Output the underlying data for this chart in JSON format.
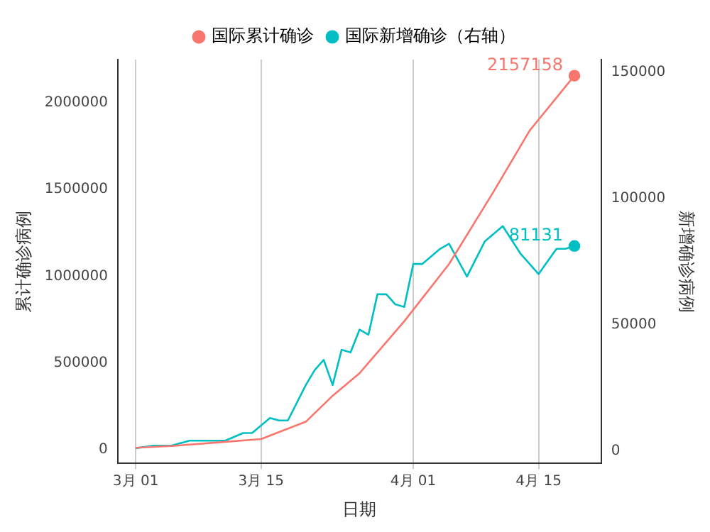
{
  "chart_data": {
    "type": "line",
    "xlabel": "日期",
    "ylabel": "累计确诊病例",
    "y2label": "新增确诊病例",
    "xlim": [
      "--02-27",
      "--04-22"
    ],
    "xticks": [
      {
        "value": "--03-01",
        "label": "3月 01"
      },
      {
        "value": "--03-15",
        "label": "3月 15"
      },
      {
        "value": "--04-01",
        "label": "4月 01"
      },
      {
        "value": "--04-15",
        "label": "4月 15"
      }
    ],
    "ylim": [
      -80000,
      2250000
    ],
    "yticks": [
      0,
      500000,
      1000000,
      1500000,
      2000000
    ],
    "y2lim": [
      -5000,
      155000
    ],
    "y2ticks": [
      0,
      50000,
      100000,
      150000
    ],
    "grid": "x",
    "legend": "top",
    "line_style": "solid",
    "series": [
      {
        "name": "国际累计确诊",
        "color": "#f8766d",
        "x": [
          "--03-01",
          "--03-05",
          "--03-10",
          "--03-15",
          "--03-20",
          "--03-23",
          "--03-26",
          "--03-31",
          "--04-05",
          "--04-10",
          "--04-14",
          "--04-19"
        ],
        "values": [
          10000,
          20000,
          40000,
          60000,
          160000,
          310000,
          440000,
          740000,
          1070000,
          1490000,
          1840000,
          2157158
        ],
        "value_labels": [
          null,
          null,
          null,
          null,
          null,
          null,
          null,
          null,
          null,
          null,
          null,
          "2157158"
        ]
      },
      {
        "name": "国际新增确诊（右轴）",
        "color": "#00bfc4",
        "axis": "y2",
        "x": [
          "--03-01",
          "--03-03",
          "--03-05",
          "--03-07",
          "--03-11",
          "--03-13",
          "--03-14",
          "--03-16",
          "--03-17",
          "--03-18",
          "--03-20",
          "--03-21",
          "--03-22",
          "--03-23",
          "--03-24",
          "--03-25",
          "--03-26",
          "--03-27",
          "--03-28",
          "--03-29",
          "--03-30",
          "--03-31",
          "--04-01",
          "--04-02",
          "--04-04",
          "--04-05",
          "--04-07",
          "--04-09",
          "--04-11",
          "--04-13",
          "--04-15",
          "--04-17",
          "--04-18",
          "--04-19"
        ],
        "values": [
          1000,
          2000,
          2000,
          4000,
          4000,
          7000,
          7000,
          13000,
          12000,
          12000,
          26000,
          32000,
          36000,
          26000,
          40000,
          39000,
          48000,
          46000,
          62000,
          62000,
          58000,
          57000,
          74000,
          74000,
          80000,
          82000,
          69000,
          83000,
          89000,
          78000,
          70000,
          80000,
          80000,
          81131
        ],
        "value_labels": [
          null,
          null,
          null,
          null,
          null,
          null,
          null,
          null,
          null,
          null,
          null,
          null,
          null,
          null,
          null,
          null,
          null,
          null,
          null,
          null,
          null,
          null,
          null,
          null,
          null,
          null,
          null,
          null,
          null,
          null,
          null,
          null,
          null,
          "81131"
        ]
      }
    ]
  }
}
